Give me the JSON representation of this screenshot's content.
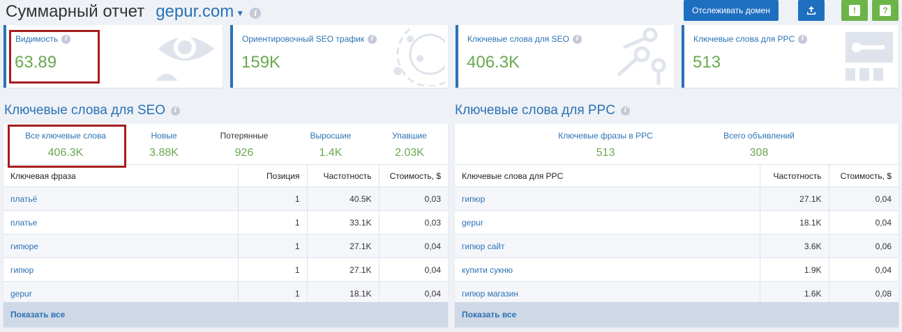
{
  "header": {
    "title": "Суммарный отчет",
    "domain": "gepur.com",
    "track_button": "Отслеживать домен"
  },
  "cards": [
    {
      "label": "Видимость",
      "value": "63.89"
    },
    {
      "label": "Ориентировочный SEO трафик",
      "value": "159K"
    },
    {
      "label": "Ключевые слова для SEO",
      "value": "406.3K"
    },
    {
      "label": "Ключевые слова для PPC",
      "value": "513"
    }
  ],
  "seo": {
    "title": "Ключевые слова для SEO",
    "stats": [
      {
        "label": "Все ключевые слова",
        "value": "406.3K"
      },
      {
        "label": "Новые",
        "value": "3.88K"
      },
      {
        "label": "Потерянные",
        "value": "926"
      },
      {
        "label": "Выросшие",
        "value": "1.4K"
      },
      {
        "label": "Упавшие",
        "value": "2.03K"
      }
    ],
    "columns": [
      "Ключевая фраза",
      "Позиция",
      "Частотность",
      "Стоимость, $"
    ],
    "rows": [
      [
        "платьё",
        "1",
        "40.5K",
        "0,03"
      ],
      [
        "платье",
        "1",
        "33.1K",
        "0,03"
      ],
      [
        "гипюре",
        "1",
        "27.1K",
        "0,04"
      ],
      [
        "гипюр",
        "1",
        "27.1K",
        "0,04"
      ],
      [
        "gepur",
        "1",
        "18.1K",
        "0,04"
      ]
    ],
    "show_all": "Показать все"
  },
  "ppc": {
    "title": "Ключевые слова для PPC",
    "stats": [
      {
        "label": "Ключевые фразы в PPC",
        "value": "513"
      },
      {
        "label": "Всего объявлений",
        "value": "308"
      }
    ],
    "columns": [
      "Ключевые слова для PPC",
      "Частотность",
      "Стоимость, $"
    ],
    "rows": [
      [
        "гипюр",
        "27.1K",
        "0,04"
      ],
      [
        "gepur",
        "18.1K",
        "0,04"
      ],
      [
        "гипюр сайт",
        "3.6K",
        "0,06"
      ],
      [
        "купити сукню",
        "1.9K",
        "0,04"
      ],
      [
        "гипюр магазин",
        "1.6K",
        "0,08"
      ]
    ],
    "show_all": "Показать все"
  },
  "colors": {
    "accent": "#2a72b5",
    "value_green": "#6aa84f",
    "highlight": "#a51c1c",
    "button_green": "#6cb448"
  }
}
